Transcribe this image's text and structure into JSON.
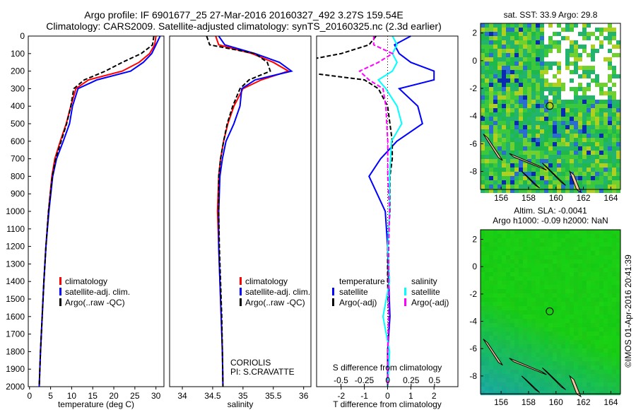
{
  "header": {
    "line1": "Argo profile: IF 6901677_25 27-Mar-2016 20160327_492 3.27S 159.54E",
    "line2": "Climatology: CARS2009. Satellite-adjusted climatology: synTS_20160325.nc (2.3d earlier)"
  },
  "credit": "©IMOS 01-Apr-2016 20:41:39",
  "colors": {
    "climatology": "#ff0000",
    "satellite": "#0000ff",
    "argo": "#000000",
    "sal_sat": "#00ffff",
    "sal_argo": "#ff00ff"
  },
  "chart_data": [
    {
      "type": "line",
      "name": "temperature",
      "xlabel": "temperature (deg C)",
      "xlim": [
        -0.3,
        31.9
      ],
      "ylim": [
        2000,
        0
      ],
      "xticks": [
        0,
        5,
        10,
        15,
        20,
        25,
        30
      ],
      "yticks": [
        0,
        100,
        200,
        300,
        400,
        500,
        600,
        700,
        800,
        900,
        1000,
        1100,
        1200,
        1300,
        1400,
        1500,
        1600,
        1700,
        1800,
        1900,
        2000
      ],
      "depth": [
        0,
        50,
        100,
        150,
        200,
        250,
        300,
        400,
        500,
        600,
        700,
        800,
        1000,
        1200,
        1400,
        1600,
        1800,
        2000
      ],
      "series": [
        {
          "name": "climatology",
          "color": "#ff0000",
          "dash": false,
          "values": [
            30,
            29.7,
            28.5,
            26,
            22,
            14,
            11,
            9.8,
            8.7,
            7.3,
            6,
            5.3,
            4.5,
            3.9,
            3.4,
            3,
            2.6,
            2.3
          ]
        },
        {
          "name": "satellite-adj. clim.",
          "color": "#0000ff",
          "dash": false,
          "values": [
            31,
            30,
            29,
            27,
            24,
            16,
            11.5,
            10.2,
            9.5,
            8,
            6.4,
            5.5,
            4.6,
            3.9,
            3.4,
            3,
            2.6,
            2.3
          ]
        },
        {
          "name": "Argo(..raw -QC)",
          "color": "#000000",
          "dash": true,
          "values": [
            29.5,
            29.2,
            26.5,
            22,
            18,
            13,
            10.5,
            9.8,
            8.8,
            7.5,
            6.2,
            5.4,
            4.5,
            3.9,
            3.4,
            3,
            2.6,
            2.3
          ]
        }
      ]
    },
    {
      "type": "line",
      "name": "salinity",
      "xlabel": "salinity",
      "xlim": [
        33.79,
        36.12
      ],
      "ylim": [
        2000,
        0
      ],
      "xticks": [
        34,
        34.5,
        35,
        35.5,
        36
      ],
      "depth": [
        0,
        50,
        100,
        150,
        200,
        250,
        300,
        400,
        500,
        600,
        700,
        800,
        1000,
        1200,
        1400,
        1600,
        1800,
        2000
      ],
      "annotation": [
        "CORIOLIS",
        "PI: S.CRAVATTE"
      ],
      "series": [
        {
          "name": "climatology",
          "color": "#ff0000",
          "dash": false,
          "values": [
            34.55,
            34.6,
            35.15,
            35.5,
            35.75,
            35.3,
            35.0,
            34.85,
            34.75,
            34.68,
            34.63,
            34.6,
            34.58,
            34.6,
            34.62,
            34.64,
            34.66,
            34.67
          ]
        },
        {
          "name": "satellite-adj. clim.",
          "color": "#0000ff",
          "dash": false,
          "values": [
            34.6,
            34.7,
            35.2,
            35.6,
            35.8,
            35.2,
            34.98,
            34.95,
            34.85,
            34.72,
            34.66,
            34.62,
            34.6,
            34.6,
            34.62,
            34.64,
            34.66,
            34.67
          ]
        },
        {
          "name": "Argo(..raw -QC)",
          "color": "#000000",
          "dash": true,
          "values": [
            34.4,
            34.45,
            35.2,
            35.4,
            35.45,
            35.1,
            34.95,
            34.83,
            34.74,
            34.68,
            34.63,
            34.6,
            34.6,
            34.61,
            34.63,
            34.65,
            34.66,
            34.67
          ]
        }
      ]
    },
    {
      "type": "line",
      "name": "difference",
      "xlabel": "T difference from climatology",
      "x2label": "S difference from climatology",
      "xlim": [
        -3.06,
        3.03
      ],
      "xticks": [
        -2,
        -1,
        0,
        1,
        2
      ],
      "x2lim": [
        -0.76,
        0.75
      ],
      "x2ticks": [
        -0.5,
        -0.25,
        0,
        0.25,
        0.5
      ],
      "legend_headers": [
        "temperature",
        "salinity"
      ],
      "depth": [
        0,
        50,
        100,
        150,
        200,
        250,
        300,
        400,
        500,
        600,
        700,
        800,
        1000,
        1200,
        1400,
        1600,
        1800,
        2000
      ],
      "series": [
        {
          "name": "satellite",
          "group": "temperature",
          "axis": "T",
          "color": "#0000ff",
          "dash": false,
          "values": [
            1,
            0.3,
            0.5,
            1,
            2,
            2,
            0.5,
            1.3,
            1.5,
            0.4,
            -0.3,
            -0.8,
            -0.1,
            0,
            0.05,
            0.1,
            0,
            0
          ]
        },
        {
          "name": "Argo(-adj)",
          "group": "temperature",
          "axis": "T",
          "color": "#000000",
          "dash": true,
          "values": [
            -0.5,
            -0.8,
            -2,
            -4,
            -4,
            -1,
            -0.4,
            0,
            0.1,
            0.2,
            0.2,
            0.1,
            0.1,
            0,
            0,
            0.05,
            0,
            0
          ]
        },
        {
          "name": "satellite",
          "group": "salinity",
          "axis": "S",
          "color": "#00ffff",
          "dash": false,
          "values": [
            0.05,
            0.1,
            0.05,
            0.1,
            0.05,
            -0.1,
            -0.02,
            0.1,
            0.15,
            0.04,
            0.03,
            0.02,
            0.02,
            0,
            0.02,
            -0.05,
            0.02,
            0
          ]
        },
        {
          "name": "Argo(-adj)",
          "group": "salinity",
          "axis": "S",
          "color": "#ff00ff",
          "dash": true,
          "values": [
            -0.15,
            -0.15,
            0.05,
            -0.1,
            -0.3,
            -0.2,
            -0.05,
            -0.02,
            -0.01,
            0,
            0,
            0,
            0.02,
            0.01,
            0.01,
            0.01,
            0,
            0
          ]
        }
      ]
    },
    {
      "type": "heatmap",
      "name": "sst-map",
      "title": "sat. SST: 33.9 Argo: 29.8",
      "xticks": [
        156,
        158,
        160,
        162,
        164
      ],
      "yticks": [
        2,
        0,
        -2,
        -4,
        -6,
        -8
      ],
      "xlim": [
        154.5,
        164.7
      ],
      "ylim": [
        -9.3,
        2.7
      ],
      "marker": [
        159.54,
        -3.27
      ]
    },
    {
      "type": "heatmap",
      "name": "sla-map",
      "title": [
        "Altim. SLA: -0.0041",
        "Argo h1000: -0.09 h2000: NaN"
      ],
      "xticks": [
        156,
        158,
        160,
        162,
        164
      ],
      "yticks": [
        2,
        0,
        -2,
        -4,
        -6,
        -8
      ],
      "xlim": [
        154.5,
        164.7
      ],
      "ylim": [
        -9.3,
        2.7
      ],
      "marker": [
        159.54,
        -3.27
      ]
    }
  ]
}
